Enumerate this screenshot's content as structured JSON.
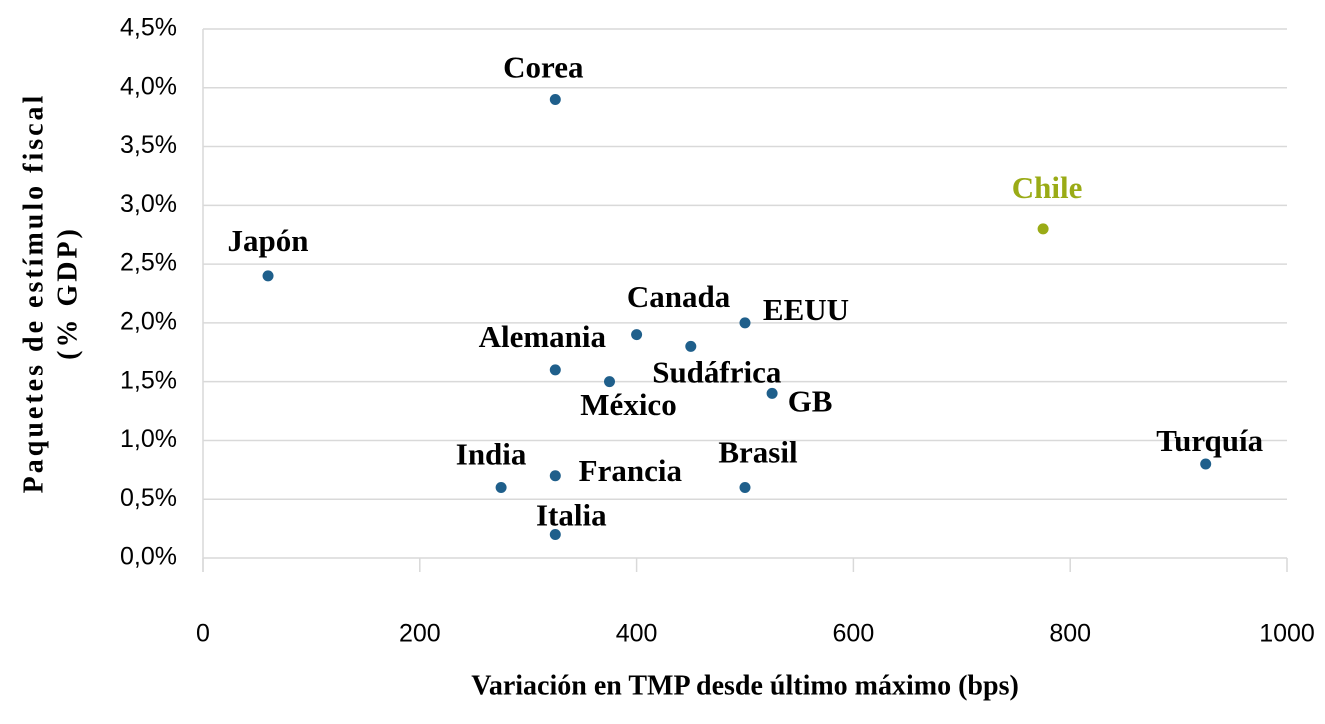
{
  "chart_data": {
    "type": "scatter",
    "x_label": "Variación en TMP desde último máximo (bps)",
    "y_label": [
      "Paquetes de estímulo fiscal",
      "(% GDP)"
    ],
    "labels": [
      "Corea",
      "Japón",
      "Chile",
      "Canada",
      "Sudáfrica",
      "EEUU",
      "Alemania",
      "México",
      "GB",
      "India",
      "Francia",
      "Brasil",
      "Italia",
      "Turquía"
    ],
    "x": [
      325,
      60,
      775,
      400,
      450,
      500,
      325,
      375,
      525,
      275,
      325,
      500,
      325,
      925
    ],
    "y": [
      3.9,
      2.4,
      2.8,
      1.9,
      1.8,
      2.0,
      1.6,
      1.5,
      1.4,
      0.6,
      0.7,
      0.6,
      0.2,
      0.8
    ],
    "colors": [
      "#1f5f8b",
      "#1f5f8b",
      "#9aab16",
      "#1f5f8b",
      "#1f5f8b",
      "#1f5f8b",
      "#1f5f8b",
      "#1f5f8b",
      "#1f5f8b",
      "#1f5f8b",
      "#1f5f8b",
      "#1f5f8b",
      "#1f5f8b",
      "#1f5f8b"
    ],
    "xlim": [
      0,
      1000
    ],
    "xticks": [
      0,
      200,
      400,
      600,
      800,
      1000
    ],
    "ylim": [
      0,
      4.5
    ],
    "yticks": [
      {
        "value": 0,
        "label": "0,0%"
      },
      {
        "value": 0.5,
        "label": "0,5%"
      },
      {
        "value": 1,
        "label": "1,0%"
      },
      {
        "value": 1.5,
        "label": "1,5%"
      },
      {
        "value": 2,
        "label": "2,0%"
      },
      {
        "value": 2.5,
        "label": "2,5%"
      },
      {
        "value": 3,
        "label": "3,0%"
      },
      {
        "value": 3.5,
        "label": "3,5%"
      },
      {
        "value": 4,
        "label": "4,0%"
      },
      {
        "value": 4.5,
        "label": "4,5%"
      }
    ],
    "grid": true
  }
}
